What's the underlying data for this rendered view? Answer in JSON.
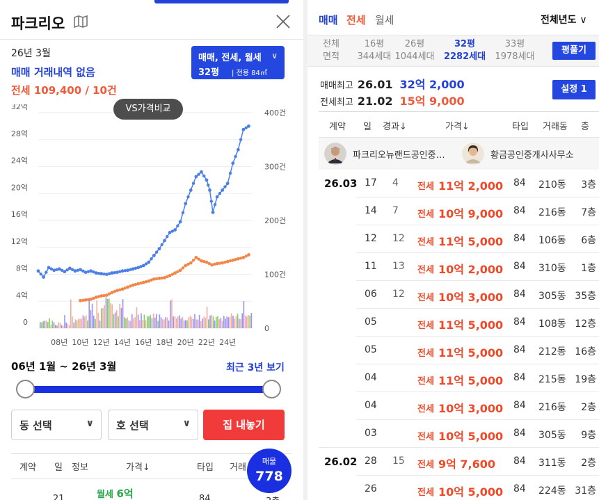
{
  "left": {
    "title": "파크리오",
    "month": "26년 3월",
    "no_sale": "매매 거래내역 없음",
    "jeonse_summary": "전세 109,400 / 10건",
    "type_select": {
      "line1": "매매, 전세, 월세",
      "size": "32평",
      "area": "전용 84㎡"
    },
    "vs_button": "VS가격비교",
    "range_text": "06년 1월 ~ 26년 3월",
    "recent_link": "최근 3년 보기",
    "dong_select": "동 선택",
    "ho_select": "호 선택",
    "register_button": "집 내놓기",
    "list_header": [
      "계약",
      "일",
      "정보",
      "가격↓",
      "타입",
      "거래"
    ],
    "listing_badge": {
      "label": "매물",
      "count": "778"
    },
    "partial_row": {
      "day": "21",
      "kind": "월세",
      "price": "6억",
      "type": "84",
      "floor": "3층"
    }
  },
  "chart_data": {
    "type": "line",
    "x_ticks": [
      "08년",
      "10년",
      "12년",
      "14년",
      "16년",
      "18년",
      "20년",
      "22년",
      "24년"
    ],
    "y_left_ticks": [
      "0",
      "4억",
      "8억",
      "12억",
      "16억",
      "20억",
      "24억",
      "28억",
      "32억"
    ],
    "y_right_ticks": [
      "0",
      "100건",
      "200건",
      "300건",
      "400건"
    ],
    "ylim_left": [
      0,
      32
    ],
    "ylim_right": [
      0,
      400
    ],
    "series": [
      {
        "color": "#4a7fe8",
        "x": [
          2006.0,
          2006.5,
          2007.0,
          2007.5,
          2008.0,
          2008.5,
          2009.0,
          2009.5,
          2010.0,
          2010.5,
          2011.0,
          2011.5,
          2012.0,
          2012.5,
          2013.0,
          2013.5,
          2014.0,
          2014.5,
          2015.0,
          2015.5,
          2016.0,
          2016.5,
          2017.0,
          2017.5,
          2018.0,
          2018.5,
          2019.0,
          2019.5,
          2020.0,
          2020.5,
          2021.0,
          2021.5,
          2022.0,
          2022.3,
          2022.6,
          2023.0,
          2023.5,
          2024.0,
          2024.5,
          2025.0,
          2025.5,
          2026.0
        ],
        "values": [
          8.5,
          7.6,
          9.0,
          8.6,
          8.8,
          8.4,
          8.9,
          8.5,
          8.7,
          8.3,
          8.5,
          8.2,
          8.1,
          8.0,
          8.2,
          8.3,
          8.5,
          8.6,
          8.8,
          9.0,
          9.3,
          9.8,
          10.8,
          11.8,
          13.0,
          14.2,
          14.6,
          15.8,
          18.5,
          20.5,
          22.5,
          23.2,
          22.0,
          20.5,
          17.2,
          19.5,
          20.5,
          21.5,
          24.5,
          26.5,
          29.5,
          30.0
        ]
      },
      {
        "color": "#f2874a",
        "x": [
          2010.0,
          2010.5,
          2011.0,
          2011.5,
          2012.0,
          2012.5,
          2013.0,
          2013.5,
          2014.0,
          2014.5,
          2015.0,
          2015.5,
          2016.0,
          2016.5,
          2017.0,
          2017.5,
          2018.0,
          2018.5,
          2019.0,
          2019.5,
          2020.0,
          2020.5,
          2021.0,
          2021.5,
          2022.0,
          2022.5,
          2023.0,
          2023.5,
          2024.0,
          2024.5,
          2025.0,
          2025.5,
          2026.0
        ],
        "values": [
          4.1,
          4.2,
          4.3,
          4.6,
          4.8,
          4.9,
          5.3,
          5.6,
          5.8,
          6.1,
          6.4,
          6.6,
          6.8,
          7.0,
          7.3,
          7.4,
          7.5,
          7.8,
          8.2,
          8.6,
          9.3,
          9.7,
          10.5,
          10.0,
          9.8,
          9.4,
          9.6,
          9.7,
          9.9,
          10.1,
          10.3,
          10.5,
          10.9
        ]
      }
    ]
  },
  "right": {
    "tabs": [
      "매매",
      "전세",
      "월세"
    ],
    "year_select": "전체년도",
    "sizes": [
      {
        "top": "전체",
        "bottom": "면적"
      },
      {
        "top": "16평",
        "bottom": "344세대"
      },
      {
        "top": "26평",
        "bottom": "1044세대"
      },
      {
        "top": "32평",
        "bottom": "2282세대"
      },
      {
        "top": "33평",
        "bottom": "1978세대"
      }
    ],
    "pyeong_button": "평풀기",
    "max_sale": {
      "label": "매매최고",
      "date": "26.01",
      "price": "32억 2,000"
    },
    "max_jeonse": {
      "label": "전세최고",
      "date": "21.02",
      "price": "15억 9,000"
    },
    "settings_button": "설정 1",
    "headers": [
      "계약",
      "일",
      "경과↓",
      "가격↓",
      "타입",
      "거래동",
      "층"
    ],
    "agent1": "파크리오뉴랜드공인중…",
    "agent2": "황금공인중개사사무소",
    "rows": [
      {
        "date": "26.03",
        "day": "17",
        "elapsed": "4",
        "kind": "전세",
        "price": "11억 2,000",
        "type": "84",
        "dong": "210동",
        "floor": "3층"
      },
      {
        "date": "",
        "day": "14",
        "elapsed": "7",
        "kind": "전세",
        "price": "10억 9,000",
        "type": "84",
        "dong": "216동",
        "floor": "7층"
      },
      {
        "date": "",
        "day": "12",
        "elapsed": "12",
        "kind": "전세",
        "price": "11억 5,000",
        "type": "84",
        "dong": "106동",
        "floor": "6층"
      },
      {
        "date": "",
        "day": "11",
        "elapsed": "13",
        "kind": "전세",
        "price": "10억 2,000",
        "type": "84",
        "dong": "310동",
        "floor": "1층"
      },
      {
        "date": "",
        "day": "06",
        "elapsed": "12",
        "kind": "전세",
        "price": "10억 3,000",
        "type": "84",
        "dong": "305동",
        "floor": "35층"
      },
      {
        "date": "",
        "day": "05",
        "elapsed": "",
        "kind": "전세",
        "price": "11억 5,000",
        "type": "84",
        "dong": "108동",
        "floor": "12층"
      },
      {
        "date": "",
        "day": "05",
        "elapsed": "",
        "kind": "전세",
        "price": "11억 5,000",
        "type": "84",
        "dong": "212동",
        "floor": "16층"
      },
      {
        "date": "",
        "day": "04",
        "elapsed": "",
        "kind": "전세",
        "price": "11억 5,000",
        "type": "84",
        "dong": "215동",
        "floor": "19층"
      },
      {
        "date": "",
        "day": "04",
        "elapsed": "",
        "kind": "전세",
        "price": "10억 3,000",
        "type": "84",
        "dong": "216동",
        "floor": "2층"
      },
      {
        "date": "",
        "day": "03",
        "elapsed": "",
        "kind": "전세",
        "price": "10억 5,000",
        "type": "84",
        "dong": "305동",
        "floor": "9층"
      },
      {
        "date": "26.02",
        "day": "28",
        "elapsed": "15",
        "kind": "전세",
        "price": "9억 7,600",
        "type": "84",
        "dong": "311동",
        "floor": "2층"
      },
      {
        "date": "",
        "day": "26",
        "elapsed": "",
        "kind": "전세",
        "price": "10억 5,000",
        "type": "84",
        "dong": "224동",
        "floor": "31층"
      }
    ]
  }
}
